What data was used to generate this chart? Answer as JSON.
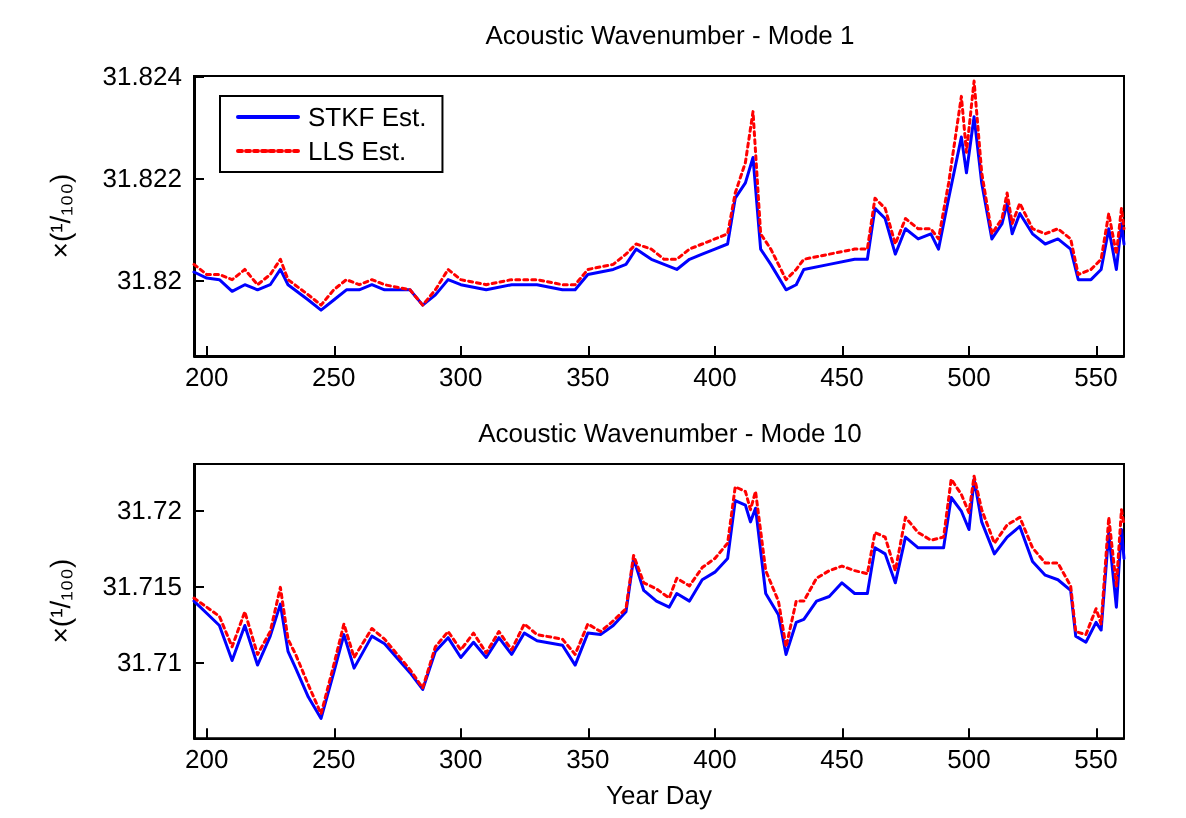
{
  "chart_data": [
    {
      "type": "line",
      "title": "Acoustic Wavenumber - Mode 1",
      "ylabel": "×(¹/₁₀₀)",
      "legend": "top left",
      "x": [
        195,
        200,
        205,
        210,
        215,
        220,
        225,
        229,
        232,
        240,
        245,
        250,
        255,
        260,
        265,
        270,
        280,
        285,
        290,
        295,
        300,
        310,
        320,
        330,
        340,
        345,
        350,
        360,
        365,
        369,
        375,
        380,
        385,
        390,
        395,
        400,
        405,
        408,
        412,
        415,
        418,
        422,
        428,
        432,
        435,
        445,
        455,
        460,
        463,
        467,
        471,
        475,
        480,
        485,
        488,
        492,
        497,
        499,
        502,
        505,
        509,
        513,
        515,
        517,
        520,
        525,
        530,
        535,
        540,
        543,
        548,
        552,
        555,
        558,
        560,
        561
      ],
      "series": [
        {
          "name": "STKF Est.",
          "color": "#0000ff",
          "line_style": "solid",
          "values": [
            31.82015,
            31.82003,
            31.82,
            31.81977,
            31.8199,
            31.8198,
            31.8199,
            31.8202,
            31.8199,
            31.8196,
            31.8194,
            31.8196,
            31.8198,
            31.8198,
            31.8199,
            31.8198,
            31.8198,
            31.8195,
            31.8197,
            31.82,
            31.8199,
            31.8198,
            31.8199,
            31.8199,
            31.8198,
            31.8198,
            31.8201,
            31.8202,
            31.8203,
            31.8206,
            31.8204,
            31.8203,
            31.8202,
            31.8204,
            31.8205,
            31.8206,
            31.8207,
            31.8216,
            31.8219,
            31.8224,
            31.8206,
            31.8203,
            31.8198,
            31.8199,
            31.8202,
            31.8203,
            31.8204,
            31.8204,
            31.8214,
            31.8212,
            31.8205,
            31.821,
            31.8208,
            31.8209,
            31.8206,
            31.8216,
            31.8228,
            31.8221,
            31.8232,
            31.8219,
            31.8208,
            31.8211,
            31.8215,
            31.8209,
            31.8213,
            31.8209,
            31.8207,
            31.8208,
            31.8206,
            31.82,
            31.82,
            31.8202,
            31.821,
            31.8202,
            31.8211,
            31.8207
          ]
        },
        {
          "name": "LLS Est.",
          "color": "#ff0000",
          "line_style": "dotted",
          "values": [
            31.8203,
            31.8201,
            31.8201,
            31.82,
            31.8202,
            31.8199,
            31.8201,
            31.8204,
            31.82,
            31.8197,
            31.8195,
            31.8198,
            31.82,
            31.8199,
            31.82,
            31.8199,
            31.8198,
            31.8195,
            31.8198,
            31.8202,
            31.82,
            31.8199,
            31.82,
            31.82,
            31.8199,
            31.8199,
            31.8202,
            31.8203,
            31.8205,
            31.8207,
            31.8206,
            31.8204,
            31.8204,
            31.8206,
            31.8207,
            31.8208,
            31.8209,
            31.8217,
            31.8223,
            31.8233,
            31.8209,
            31.8206,
            31.82,
            31.8202,
            31.8204,
            31.8205,
            31.8206,
            31.8206,
            31.8216,
            31.8214,
            31.8207,
            31.8212,
            31.821,
            31.821,
            31.8208,
            31.8219,
            31.8236,
            31.8225,
            31.8239,
            31.8221,
            31.8209,
            31.8212,
            31.8217,
            31.8211,
            31.8215,
            31.821,
            31.8209,
            31.821,
            31.8208,
            31.8201,
            31.8202,
            31.8204,
            31.8213,
            31.8205,
            31.8214,
            31.821
          ]
        }
      ],
      "xlim": [
        195,
        561
      ],
      "xticks": [
        200,
        250,
        300,
        350,
        400,
        450,
        500,
        550
      ],
      "ylim": [
        31.8185,
        31.824
      ],
      "yticks": [
        31.82,
        31.822,
        31.824
      ]
    },
    {
      "type": "line",
      "title": "Acoustic Wavenumber - Mode 10",
      "xlabel": "Year Day",
      "ylabel": "×(¹/₁₀₀)",
      "x": [
        195,
        200,
        205,
        210,
        215,
        220,
        225,
        229,
        232,
        235,
        240,
        245,
        250,
        254,
        258,
        265,
        270,
        280,
        285,
        290,
        295,
        300,
        305,
        310,
        315,
        320,
        325,
        330,
        340,
        345,
        350,
        355,
        360,
        365,
        368,
        372,
        377,
        382,
        385,
        390,
        395,
        400,
        405,
        408,
        412,
        414,
        416,
        420,
        425,
        428,
        432,
        435,
        440,
        445,
        450,
        455,
        460,
        463,
        467,
        471,
        475,
        480,
        485,
        490,
        493,
        497,
        500,
        502,
        505,
        510,
        515,
        520,
        525,
        530,
        535,
        540,
        542,
        546,
        550,
        552,
        555,
        558,
        560,
        561
      ],
      "series": [
        {
          "color": "#0000ff",
          "line_style": "solid",
          "values": [
            31.714,
            31.7132,
            31.7124,
            31.7101,
            31.7124,
            31.7098,
            31.7117,
            31.7138,
            31.7107,
            31.7096,
            31.7077,
            31.7063,
            31.7093,
            31.7118,
            31.7096,
            31.7117,
            31.7112,
            31.7093,
            31.7082,
            31.7107,
            31.7116,
            31.7103,
            31.7113,
            31.7103,
            31.7116,
            31.7105,
            31.7119,
            31.7114,
            31.7111,
            31.7098,
            31.7119,
            31.7118,
            31.7124,
            31.7133,
            31.7168,
            31.7147,
            31.714,
            31.7136,
            31.7145,
            31.714,
            31.7154,
            31.7159,
            31.7168,
            31.7206,
            31.7203,
            31.7192,
            31.7201,
            31.7145,
            31.7131,
            31.7105,
            31.7126,
            31.7128,
            31.714,
            31.7143,
            31.7152,
            31.7145,
            31.7145,
            31.7175,
            31.7171,
            31.7152,
            31.7182,
            31.7175,
            31.7175,
            31.7175,
            31.7208,
            31.7199,
            31.7187,
            31.722,
            31.7192,
            31.7171,
            31.7182,
            31.7189,
            31.7166,
            31.7157,
            31.7154,
            31.7147,
            31.7117,
            31.7113,
            31.7126,
            31.7121,
            31.7185,
            31.7136,
            31.7187,
            31.7168
          ]
        },
        {
          "color": "#ff0000",
          "line_style": "dotted",
          "values": [
            31.7142,
            31.7136,
            31.713,
            31.711,
            31.7133,
            31.7105,
            31.712,
            31.7149,
            31.7115,
            31.7105,
            31.7085,
            31.7066,
            31.7098,
            31.7125,
            31.7103,
            31.7122,
            31.7115,
            31.7095,
            31.7083,
            31.711,
            31.712,
            31.7108,
            31.7119,
            31.7106,
            31.712,
            31.7108,
            31.7125,
            31.7118,
            31.7115,
            31.7105,
            31.7125,
            31.712,
            31.7127,
            31.7135,
            31.717,
            31.7152,
            31.7148,
            31.7142,
            31.7155,
            31.715,
            31.7162,
            31.7168,
            31.7178,
            31.7215,
            31.7212,
            31.72,
            31.7212,
            31.716,
            31.714,
            31.711,
            31.714,
            31.714,
            31.7155,
            31.716,
            31.7163,
            31.716,
            31.7158,
            31.7185,
            31.7182,
            31.716,
            31.7195,
            31.7185,
            31.718,
            31.7182,
            31.722,
            31.721,
            31.7198,
            31.7222,
            31.72,
            31.7178,
            31.719,
            31.7195,
            31.7175,
            31.7165,
            31.7165,
            31.715,
            31.712,
            31.7118,
            31.7135,
            31.7125,
            31.7195,
            31.715,
            31.72,
            31.719
          ]
        }
      ],
      "xlim": [
        195,
        561
      ],
      "xticks": [
        200,
        250,
        300,
        350,
        400,
        450,
        500,
        550
      ],
      "ylim": [
        31.705,
        31.723
      ],
      "yticks": [
        31.71,
        31.715,
        31.72
      ]
    }
  ]
}
